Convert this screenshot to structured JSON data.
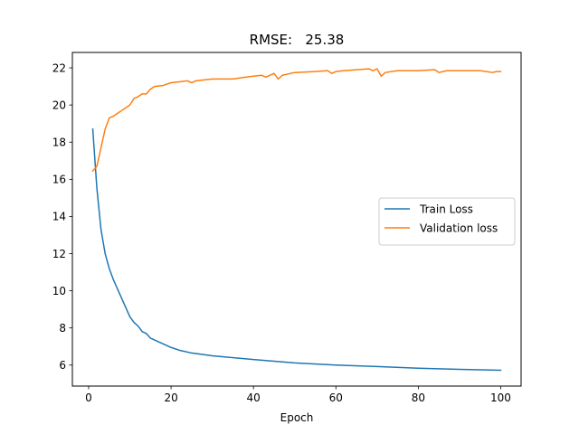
{
  "chart_data": {
    "type": "line",
    "title": "RMSE:   25.38",
    "xlabel": "Epoch",
    "ylabel": "",
    "xlim": [
      -3.95,
      104.95
    ],
    "ylim": [
      4.87,
      22.83
    ],
    "xticks": [
      0,
      20,
      40,
      60,
      80,
      100
    ],
    "yticks": [
      6,
      8,
      10,
      12,
      14,
      16,
      18,
      20,
      22
    ],
    "grid": false,
    "legend_position": "center-right",
    "series": [
      {
        "name": "Train Loss",
        "color": "#1f77b4",
        "x": [
          1,
          2,
          3,
          4,
          5,
          6,
          7,
          8,
          9,
          10,
          11,
          12,
          13,
          14,
          15,
          16,
          18,
          20,
          22,
          25,
          30,
          40,
          50,
          60,
          70,
          80,
          90,
          100
        ],
        "y": [
          18.7,
          15.5,
          13.3,
          12.0,
          11.2,
          10.6,
          10.1,
          9.6,
          9.1,
          8.6,
          8.3,
          8.1,
          7.8,
          7.7,
          7.45,
          7.35,
          7.15,
          6.95,
          6.8,
          6.65,
          6.5,
          6.3,
          6.12,
          6.0,
          5.92,
          5.83,
          5.77,
          5.72
        ]
      },
      {
        "name": "Validation loss",
        "color": "#ff7f0e",
        "x": [
          1,
          2,
          3,
          4,
          5,
          6,
          7,
          8,
          9,
          10,
          11,
          12,
          13,
          14,
          15,
          16,
          18,
          20,
          22,
          24,
          25,
          26,
          30,
          35,
          38,
          40,
          42,
          43,
          45,
          46,
          47,
          50,
          55,
          58,
          59,
          60,
          62,
          65,
          68,
          69,
          70,
          71,
          72,
          75,
          80,
          84,
          85,
          87,
          90,
          95,
          98,
          99,
          100
        ],
        "y": [
          16.45,
          16.7,
          17.7,
          18.7,
          19.3,
          19.4,
          19.55,
          19.7,
          19.85,
          20.0,
          20.35,
          20.45,
          20.6,
          20.6,
          20.85,
          21.0,
          21.05,
          21.2,
          21.25,
          21.3,
          21.2,
          21.3,
          21.4,
          21.4,
          21.5,
          21.55,
          21.6,
          21.5,
          21.7,
          21.4,
          21.6,
          21.75,
          21.8,
          21.85,
          21.7,
          21.8,
          21.85,
          21.9,
          21.95,
          21.85,
          21.95,
          21.55,
          21.75,
          21.85,
          21.85,
          21.9,
          21.75,
          21.85,
          21.85,
          21.85,
          21.75,
          21.8,
          21.8
        ]
      }
    ]
  }
}
